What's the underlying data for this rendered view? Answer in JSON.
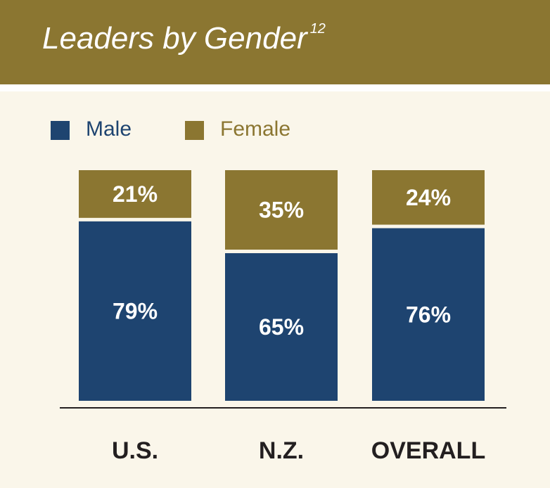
{
  "header": {
    "title": "Leaders by Gender",
    "superscript": "12"
  },
  "legend": [
    {
      "label": "Male",
      "color": "#1e4470"
    },
    {
      "label": "Female",
      "color": "#8b7631"
    }
  ],
  "chart_data": {
    "type": "bar",
    "stacked": true,
    "categories": [
      "U.S.",
      "N.Z.",
      "OVERALL"
    ],
    "series": [
      {
        "name": "Male",
        "color": "#1e4470",
        "values": [
          79,
          65,
          76
        ],
        "labels": [
          "79%",
          "65%",
          "76%"
        ]
      },
      {
        "name": "Female",
        "color": "#8b7631",
        "values": [
          21,
          35,
          24
        ],
        "labels": [
          "21%",
          "35%",
          "24%"
        ]
      }
    ],
    "ylim": [
      0,
      100
    ],
    "grid": false,
    "legend_position": "top-left"
  }
}
